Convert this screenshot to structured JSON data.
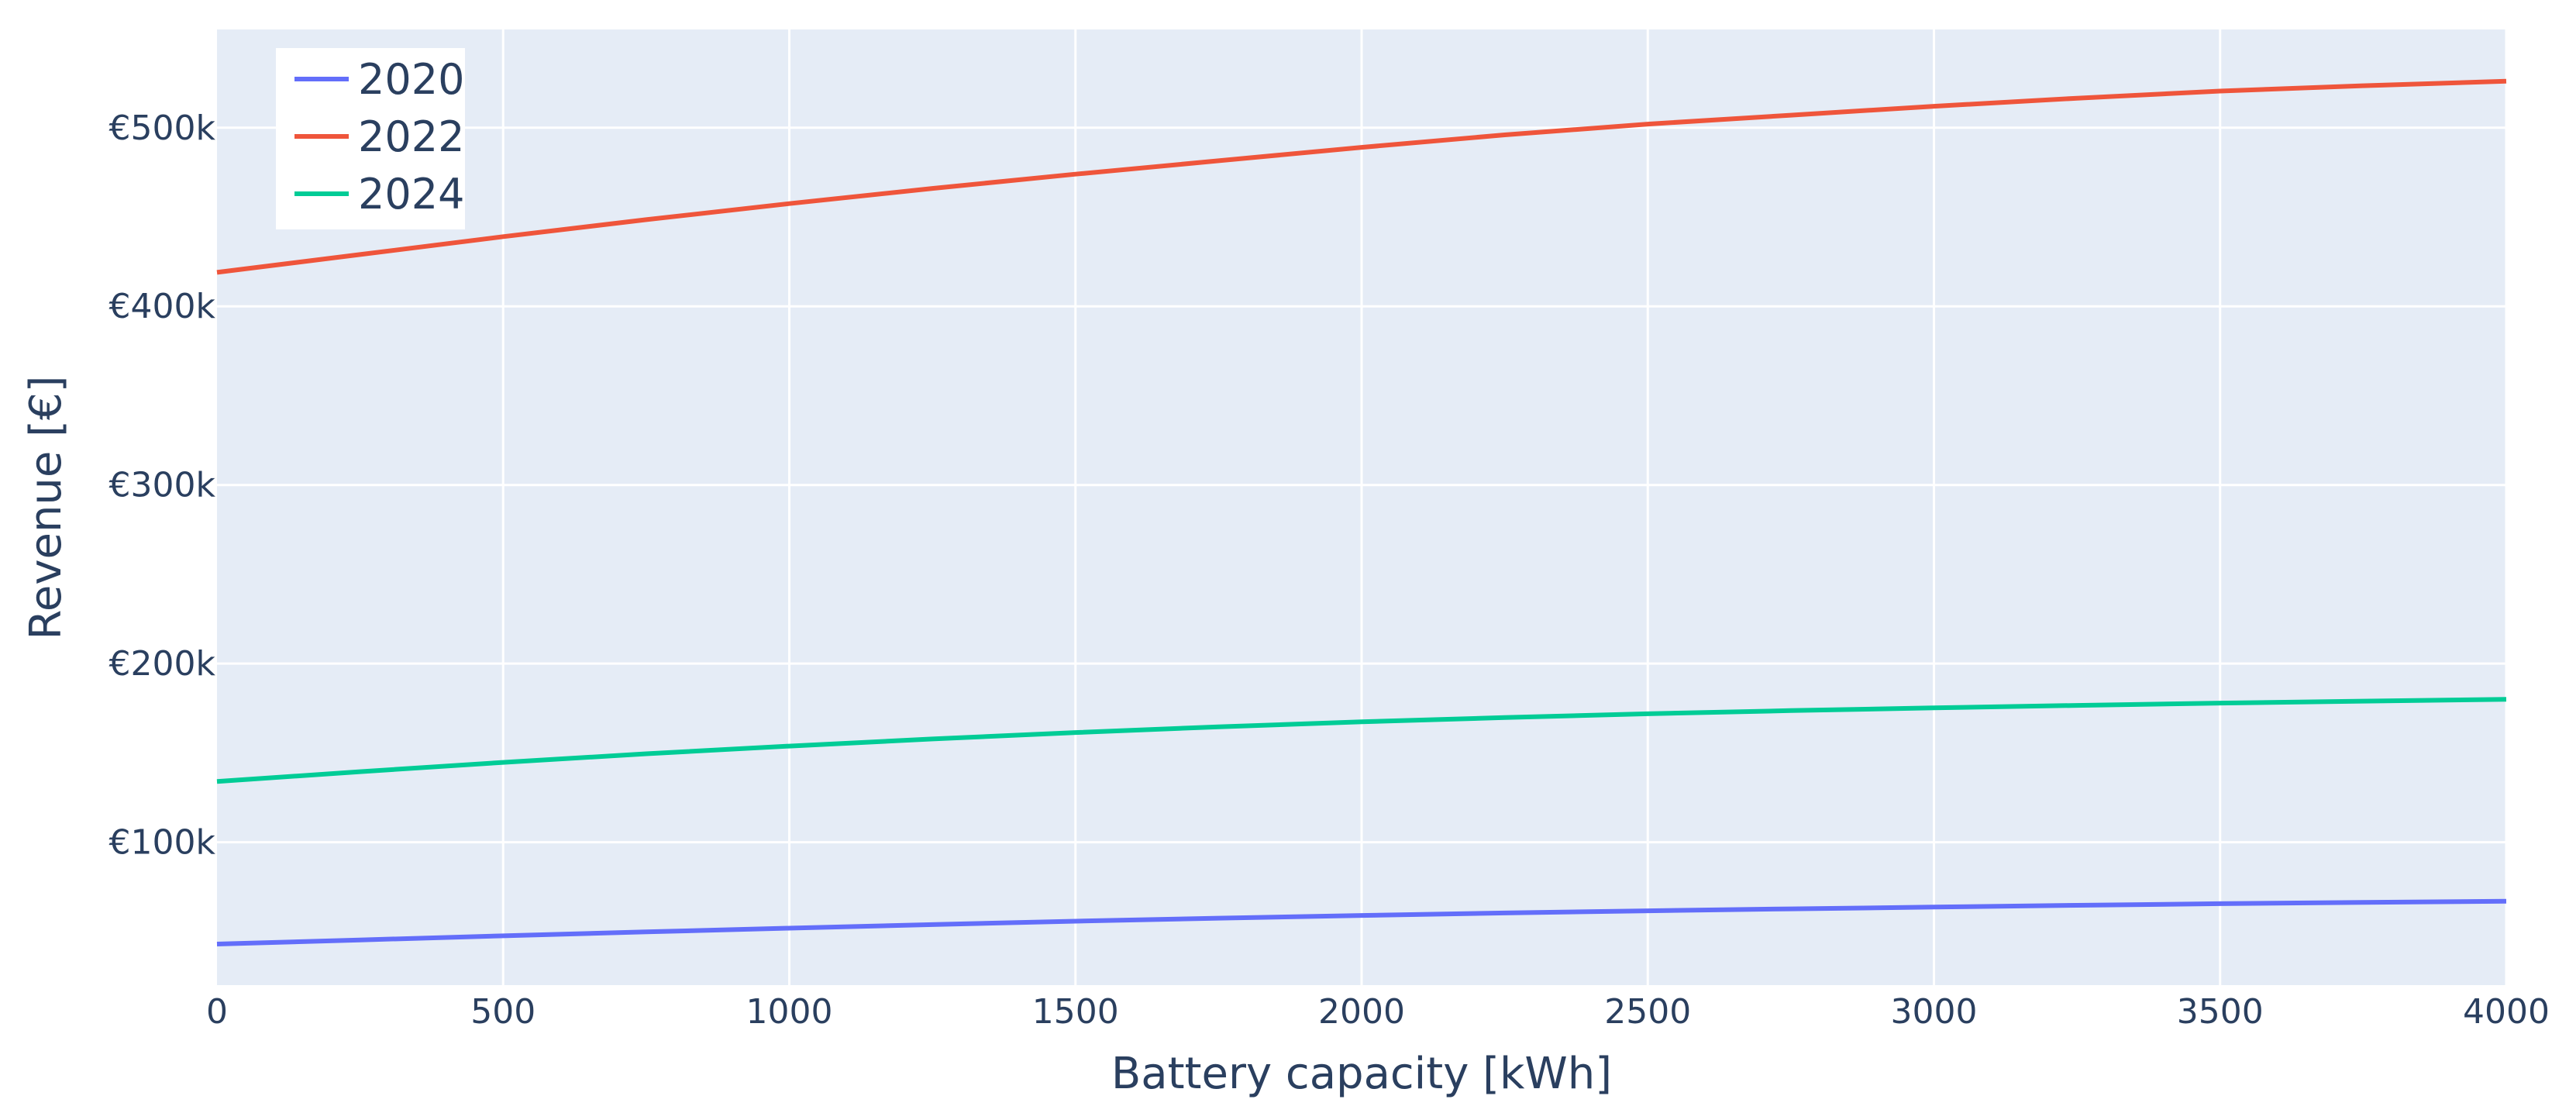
{
  "chart_data": {
    "type": "line",
    "title": "",
    "xlabel": "Battery capacity [kWh]",
    "ylabel": "Revenue [€]",
    "xlim": [
      0,
      4000
    ],
    "ylim": [
      20000,
      555000
    ],
    "x_ticks": [
      0,
      500,
      1000,
      1500,
      2000,
      2500,
      3000,
      3500,
      4000
    ],
    "x_tick_labels": [
      "0",
      "500",
      "1000",
      "1500",
      "2000",
      "2500",
      "3000",
      "3500",
      "4000"
    ],
    "y_ticks": [
      100000,
      200000,
      300000,
      400000,
      500000
    ],
    "y_tick_labels": [
      "€100k",
      "€200k",
      "€300k",
      "€400k",
      "€500k"
    ],
    "grid": true,
    "legend_position": "top-left",
    "plot_background": "#e5ecf6",
    "x": [
      0,
      250,
      500,
      750,
      1000,
      1250,
      1500,
      1750,
      2000,
      2250,
      2500,
      2750,
      3000,
      3250,
      3500,
      3750,
      4000
    ],
    "series": [
      {
        "name": "2020",
        "color": "#636efa",
        "values": [
          43000,
          45300,
          47600,
          49800,
          51900,
          53900,
          55800,
          57500,
          59000,
          60400,
          61600,
          62700,
          63700,
          64700,
          65600,
          66300,
          67000
        ]
      },
      {
        "name": "2022",
        "color": "#ef553b",
        "values": [
          419000,
          429000,
          439000,
          448500,
          457500,
          466000,
          474000,
          481500,
          489000,
          496000,
          502000,
          507000,
          512000,
          516500,
          520500,
          523500,
          526000
        ]
      },
      {
        "name": "2024",
        "color": "#00cc96",
        "values": [
          134000,
          139500,
          144700,
          149500,
          153800,
          157800,
          161400,
          164600,
          167400,
          169800,
          171900,
          173700,
          175200,
          176600,
          177900,
          179000,
          180000
        ]
      }
    ]
  }
}
